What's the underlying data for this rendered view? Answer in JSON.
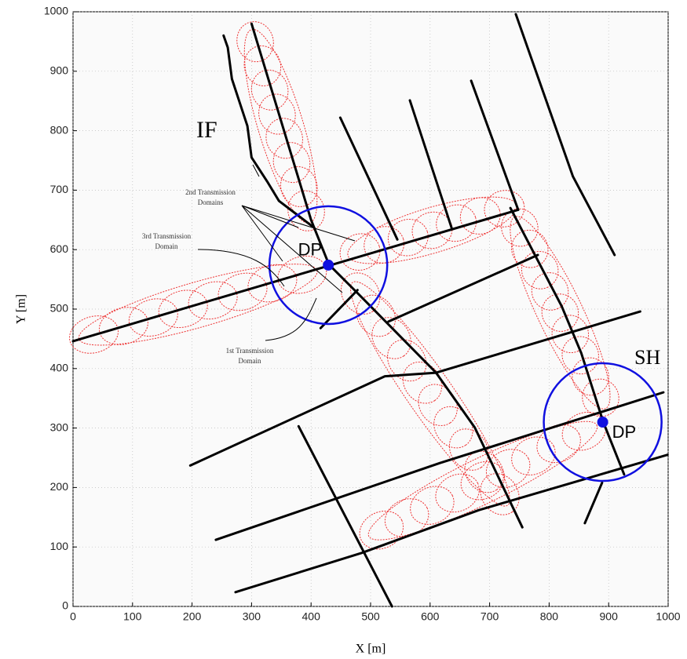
{
  "chart_data": {
    "type": "line",
    "xlabel": "X [m]",
    "ylabel": "Y [m]",
    "xlim": [
      0,
      1000
    ],
    "ylim": [
      0,
      1000
    ],
    "xticks": [
      0,
      100,
      200,
      300,
      400,
      500,
      600,
      700,
      800,
      900,
      1000
    ],
    "yticks": [
      0,
      100,
      200,
      300,
      400,
      500,
      600,
      700,
      800,
      900,
      1000
    ],
    "grid": true,
    "road_color": "#000000",
    "zone_color": "#e02020",
    "station_color": "#1010e0",
    "roads": [
      {
        "x": [
          300,
          400,
          430,
          480,
          610,
          675,
          755
        ],
        "y": [
          980,
          650,
          575,
          525,
          393,
          301,
          133
        ]
      },
      {
        "x": [
          0,
          748
        ],
        "y": [
          446,
          667
        ]
      },
      {
        "x": [
          253,
          260,
          267,
          293,
          300,
          326,
          346,
          405
        ],
        "y": [
          960,
          940,
          887,
          808,
          755,
          715,
          682,
          637
        ]
      },
      {
        "x": [
          449,
          545
        ],
        "y": [
          822,
          617
        ]
      },
      {
        "x": [
          566,
          636
        ],
        "y": [
          851,
          637
        ]
      },
      {
        "x": [
          669,
          748
        ],
        "y": [
          884,
          667
        ]
      },
      {
        "x": [
          744,
          840,
          910
        ],
        "y": [
          996,
          723,
          591
        ]
      },
      {
        "x": [
          735,
          821,
          854,
          891,
          926
        ],
        "y": [
          670,
          505,
          426,
          310,
          222
        ]
      },
      {
        "x": [
          530,
          781
        ],
        "y": [
          479,
          591
        ]
      },
      {
        "x": [
          416,
          478
        ],
        "y": [
          468,
          532
        ]
      },
      {
        "x": [
          197,
          524,
          610,
          953
        ],
        "y": [
          237,
          387,
          393,
          496
        ]
      },
      {
        "x": [
          240,
          616,
          992
        ],
        "y": [
          112,
          241,
          360
        ]
      },
      {
        "x": [
          273,
          485,
          682,
          999
        ],
        "y": [
          24,
          90,
          162,
          255
        ]
      },
      {
        "x": [
          379,
          536
        ],
        "y": [
          303,
          0
        ]
      },
      {
        "x": [
          860,
          889
        ],
        "y": [
          140,
          208
        ]
      }
    ],
    "zones": [
      {
        "x": [
          10,
          410
        ],
        "y": [
          450,
          565
        ],
        "count": 8,
        "minor": 38
      },
      {
        "x": [
          300,
          398
        ],
        "y": [
          970,
          645
        ],
        "count": 8,
        "minor": 38
      },
      {
        "x": [
          462,
          745
        ],
        "y": [
          590,
          675
        ],
        "count": 7,
        "minor": 38
      },
      {
        "x": [
          470,
          730
        ],
        "y": [
          545,
          170
        ],
        "count": 10,
        "minor": 38
      },
      {
        "x": [
          742,
          895
        ],
        "y": [
          655,
          333
        ],
        "count": 9,
        "minor": 38
      },
      {
        "x": [
          497,
          880
        ],
        "y": [
          118,
          305
        ],
        "count": 9,
        "minor": 38
      }
    ],
    "stations": [
      {
        "name": "DP",
        "x": 429,
        "y": 574,
        "radius": 99
      },
      {
        "name": "DP",
        "x": 890,
        "y": 310,
        "radius": 99
      }
    ],
    "labels": {
      "if": "IF",
      "sh": "SH",
      "second": [
        "2nd Transmission",
        "Domains"
      ],
      "third": [
        "3rd Transmission",
        "Domain"
      ],
      "first": [
        "1st Transmission",
        "Domain"
      ]
    }
  }
}
